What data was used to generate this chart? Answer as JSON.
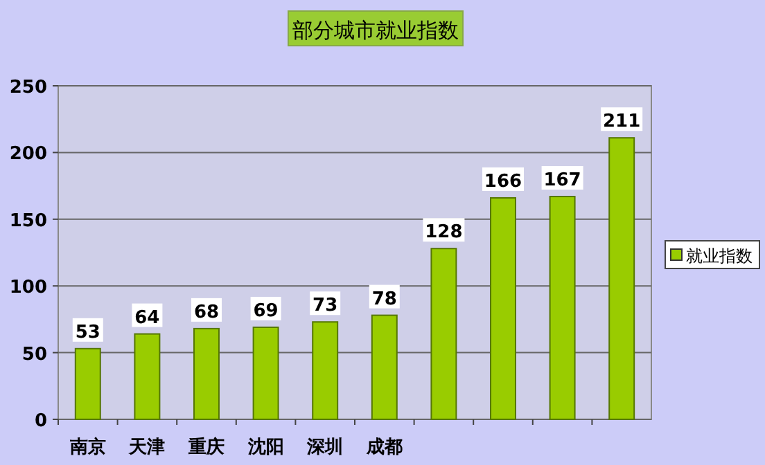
{
  "chart_data": {
    "type": "bar",
    "title": "部分城市就业指数",
    "categories": [
      "南京",
      "天津",
      "重庆",
      "沈阳",
      "深圳",
      "成都",
      null,
      null,
      null,
      null
    ],
    "series": [
      {
        "name": "就业指数",
        "color": "#99cc00",
        "values": [
          53,
          64,
          68,
          69,
          73,
          78,
          128,
          166,
          167,
          211
        ]
      }
    ],
    "ylim": [
      0,
      250
    ],
    "yticks": [
      0,
      50,
      100,
      150,
      200,
      250
    ],
    "grid": "y",
    "legend": "right",
    "data_labels": true
  }
}
